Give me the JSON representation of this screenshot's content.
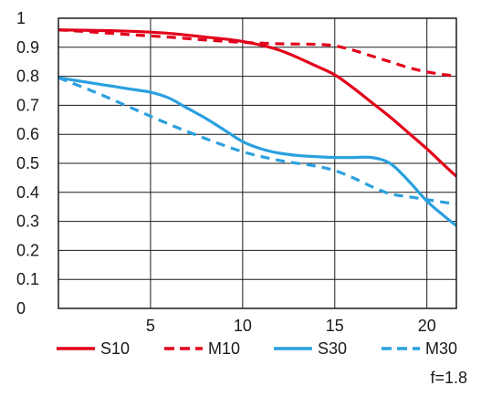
{
  "chart_data": {
    "type": "line",
    "title": "",
    "xlabel": "",
    "ylabel": "",
    "xlim": [
      0,
      21.6
    ],
    "ylim": [
      0,
      1
    ],
    "x_ticks": [
      "5",
      "10",
      "15",
      "20"
    ],
    "y_ticks": [
      "0",
      "0.1",
      "0.2",
      "0.3",
      "0.4",
      "0.5",
      "0.6",
      "0.7",
      "0.8",
      "0.9",
      "1"
    ],
    "grid": true,
    "legend_position": "bottom",
    "series": [
      {
        "name": "S10",
        "color": "#e2001a",
        "dash": "solid",
        "x": [
          0,
          2,
          4,
          6,
          8,
          10,
          12,
          14,
          15,
          16,
          17,
          18,
          19,
          20,
          21,
          21.6
        ],
        "y": [
          0.96,
          0.958,
          0.955,
          0.948,
          0.935,
          0.92,
          0.89,
          0.835,
          0.805,
          0.76,
          0.71,
          0.66,
          0.605,
          0.55,
          0.49,
          0.455
        ]
      },
      {
        "name": "M10",
        "color": "#e2001a",
        "dash": "dashed",
        "x": [
          0,
          2,
          4,
          6,
          8,
          10,
          12,
          14,
          15,
          16,
          17,
          18,
          19,
          20,
          21,
          21.6
        ],
        "y": [
          0.96,
          0.952,
          0.943,
          0.935,
          0.925,
          0.917,
          0.912,
          0.91,
          0.905,
          0.89,
          0.87,
          0.85,
          0.83,
          0.815,
          0.805,
          0.8
        ]
      },
      {
        "name": "S30",
        "color": "#2aa0df",
        "dash": "solid",
        "x": [
          0,
          1,
          2,
          3,
          4,
          5,
          6,
          7,
          8,
          9,
          10,
          11,
          12,
          13,
          14,
          15,
          16,
          17,
          18,
          19,
          20,
          21,
          21.6
        ],
        "y": [
          0.795,
          0.785,
          0.775,
          0.765,
          0.755,
          0.745,
          0.725,
          0.69,
          0.655,
          0.615,
          0.575,
          0.55,
          0.535,
          0.527,
          0.523,
          0.52,
          0.52,
          0.52,
          0.5,
          0.44,
          0.37,
          0.315,
          0.285
        ]
      },
      {
        "name": "M30",
        "color": "#2aa0df",
        "dash": "dashed",
        "x": [
          0,
          2,
          4,
          6,
          8,
          10,
          12,
          14,
          15,
          16,
          17,
          18,
          19,
          20,
          21,
          21.6
        ],
        "y": [
          0.795,
          0.745,
          0.69,
          0.635,
          0.585,
          0.54,
          0.51,
          0.49,
          0.475,
          0.45,
          0.42,
          0.395,
          0.385,
          0.375,
          0.365,
          0.36
        ]
      }
    ],
    "annotation": "f=1.8"
  }
}
